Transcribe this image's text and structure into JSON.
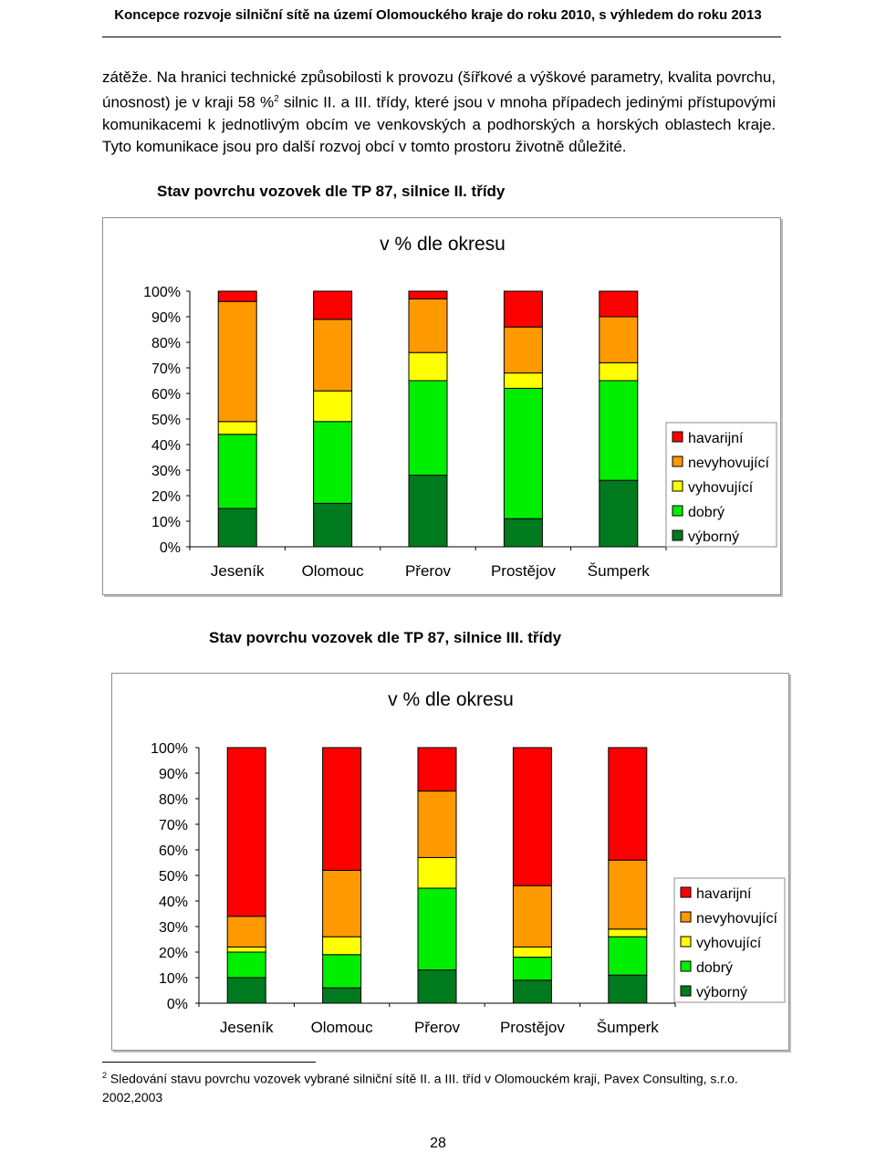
{
  "header": {
    "title": "Koncepce rozvoje silniční sítě na území Olomouckého kraje do roku 2010, s výhledem do roku 2013"
  },
  "paragraph": {
    "text_a": "zátěže. Na hranici technické způsobilosti k provozu (šířkové a výškové parametry, kvalita povrchu, únosnost) je v kraji 58 %",
    "footnote_ref": "2",
    "text_b": " silnic II. a III. třídy, které jsou v mnoha případech jedinými přístupovými komunikacemi k jednotlivým obcím ve venkovských a podhorských a horských oblastech kraje. Tyto komunikace jsou pro další rozvoj obcí v tomto prostoru životně důležité."
  },
  "colors": {
    "havarijni": "#ff0000",
    "nevyhovujici": "#ff9900",
    "vyhovujici": "#ffff00",
    "dobry": "#00ee00",
    "vyborny": "#007a1e"
  },
  "chart_data": [
    {
      "type": "bar",
      "stacked": true,
      "heading": "Stav povrchu vozovek dle TP 87, silnice II. třídy",
      "title": "v % dle okresu",
      "categories": [
        "Jeseník",
        "Olomouc",
        "Přerov",
        "Prostějov",
        "Šumperk"
      ],
      "ylim": [
        0,
        100
      ],
      "yticks": [
        "0%",
        "10%",
        "20%",
        "30%",
        "40%",
        "50%",
        "60%",
        "70%",
        "80%",
        "90%",
        "100%"
      ],
      "legend_position": "right",
      "series": [
        {
          "name": "výborný",
          "color_key": "vyborny",
          "values": [
            15,
            17,
            28,
            11,
            26
          ]
        },
        {
          "name": "dobrý",
          "color_key": "dobry",
          "values": [
            29,
            32,
            37,
            51,
            39
          ]
        },
        {
          "name": "vyhovující",
          "color_key": "vyhovujici",
          "values": [
            5,
            12,
            11,
            6,
            7
          ]
        },
        {
          "name": "nevyhovující",
          "color_key": "nevyhovujici",
          "values": [
            47,
            28,
            21,
            18,
            18
          ]
        },
        {
          "name": "havarijní",
          "color_key": "havarijni",
          "values": [
            4,
            11,
            3,
            14,
            10
          ]
        }
      ]
    },
    {
      "type": "bar",
      "stacked": true,
      "heading": "Stav povrchu vozovek dle TP 87, silnice III. třídy",
      "title": "v % dle okresu",
      "categories": [
        "Jeseník",
        "Olomouc",
        "Přerov",
        "Prostějov",
        "Šumperk"
      ],
      "ylim": [
        0,
        100
      ],
      "yticks": [
        "0%",
        "10%",
        "20%",
        "30%",
        "40%",
        "50%",
        "60%",
        "70%",
        "80%",
        "90%",
        "100%"
      ],
      "legend_position": "right",
      "series": [
        {
          "name": "výborný",
          "color_key": "vyborny",
          "values": [
            10,
            6,
            13,
            9,
            11
          ]
        },
        {
          "name": "dobrý",
          "color_key": "dobry",
          "values": [
            10,
            13,
            32,
            9,
            15
          ]
        },
        {
          "name": "vyhovující",
          "color_key": "vyhovujici",
          "values": [
            2,
            7,
            12,
            4,
            3
          ]
        },
        {
          "name": "nevyhovující",
          "color_key": "nevyhovujici",
          "values": [
            12,
            26,
            26,
            24,
            27
          ]
        },
        {
          "name": "havarijní",
          "color_key": "havarijni",
          "values": [
            66,
            48,
            17,
            54,
            44
          ]
        }
      ]
    }
  ],
  "footnote": {
    "number": "2",
    "text": "Sledování stavu povrchu vozovek vybrané silniční sítě II. a III. tříd v Olomouckém kraji, Pavex Consulting, s.r.o. 2002,2003"
  },
  "page_number": "28"
}
